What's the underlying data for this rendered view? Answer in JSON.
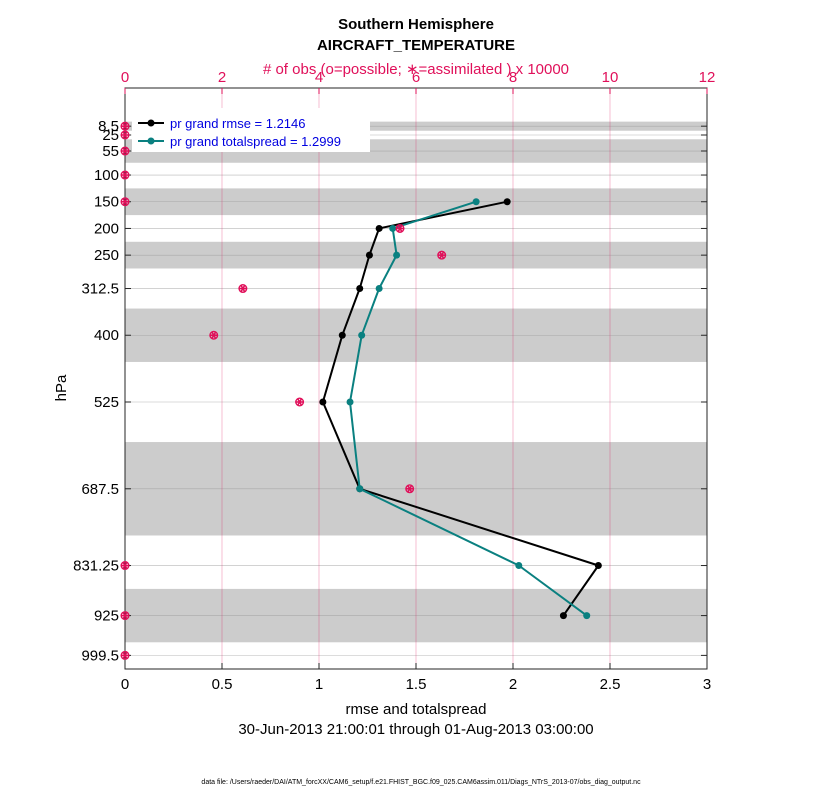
{
  "chart_data": {
    "type": "line",
    "title": "Southern Hemisphere",
    "subtitle": "AIRCRAFT_TEMPERATURE",
    "top_axis_label": "# of obs (o=possible; ∗=assimilated ) x 10000",
    "xlabel": "rmse and totalspread",
    "ylabel": "hPa",
    "date_range": "30-Jun-2013 21:00:01 through 01-Aug-2013 03:00:00",
    "footer": "data file: /Users/raeder/DAI/ATM_forcXX/CAM6_setup/f.e21.FHIST_BGC.f09_025.CAM6assim.011/Diags_NTrS_2013-07/obs_diag_output.nc",
    "xlim": [
      0,
      3
    ],
    "x_ticks": [
      0,
      0.5,
      1,
      1.5,
      2,
      2.5,
      3
    ],
    "x_tick_labels": [
      "0",
      "0.5",
      "1",
      "1.5",
      "2",
      "2.5",
      "3"
    ],
    "top_xlim": [
      0,
      12
    ],
    "top_ticks": [
      0,
      2,
      4,
      6,
      8,
      10,
      12
    ],
    "top_tick_labels": [
      "0",
      "2",
      "4",
      "6",
      "8",
      "10",
      "12"
    ],
    "ylim": [
      1025,
      -63
    ],
    "y_levels": [
      8.5,
      25,
      55,
      100,
      150,
      200,
      250,
      312.5,
      400,
      525,
      687.5,
      831.25,
      925,
      999.5
    ],
    "y_tick_labels": [
      "8.5",
      "25",
      "55",
      "100",
      "150",
      "200",
      "250",
      "312.5",
      "400",
      "525",
      "687.5",
      "831.25",
      "925",
      "999.5"
    ],
    "bands": [
      [
        0,
        17
      ],
      [
        33,
        77
      ],
      [
        125,
        175
      ],
      [
        225,
        275
      ],
      [
        350,
        450
      ],
      [
        600,
        775
      ],
      [
        875,
        975
      ]
    ],
    "series": [
      {
        "name": "pr grand rmse",
        "legend_label": "pr grand rmse = 1.2146",
        "color": "#000000",
        "points": [
          {
            "level": 150,
            "value": 1.97
          },
          {
            "level": 200,
            "value": 1.31
          },
          {
            "level": 250,
            "value": 1.26
          },
          {
            "level": 312.5,
            "value": 1.21
          },
          {
            "level": 400,
            "value": 1.12
          },
          {
            "level": 525,
            "value": 1.02
          },
          {
            "level": 687.5,
            "value": 1.21
          },
          {
            "level": 831.25,
            "value": 2.44
          },
          {
            "level": 925,
            "value": 2.26
          }
        ]
      },
      {
        "name": "pr grand totalspread",
        "legend_label": "pr grand totalspread = 1.2999",
        "color": "#0a8080",
        "points": [
          {
            "level": 150,
            "value": 1.81
          },
          {
            "level": 200,
            "value": 1.38
          },
          {
            "level": 250,
            "value": 1.4
          },
          {
            "level": 312.5,
            "value": 1.31
          },
          {
            "level": 400,
            "value": 1.22
          },
          {
            "level": 525,
            "value": 1.16
          },
          {
            "level": 687.5,
            "value": 1.21
          },
          {
            "level": 831.25,
            "value": 2.03
          },
          {
            "level": 925,
            "value": 2.38
          }
        ]
      }
    ],
    "obs_counts": {
      "name": "# of obs",
      "color": "#e0105a",
      "unit": "x 10000",
      "points": [
        {
          "level": 8.5,
          "value": 0.0
        },
        {
          "level": 25,
          "value": 0.0
        },
        {
          "level": 55,
          "value": 0.0
        },
        {
          "level": 100,
          "value": 0.0
        },
        {
          "level": 150,
          "value": 0.0
        },
        {
          "level": 200,
          "value": 5.67
        },
        {
          "level": 250,
          "value": 6.53
        },
        {
          "level": 312.5,
          "value": 2.43
        },
        {
          "level": 400,
          "value": 1.83
        },
        {
          "level": 525,
          "value": 3.6
        },
        {
          "level": 687.5,
          "value": 5.87
        },
        {
          "level": 831.25,
          "value": 0.0
        },
        {
          "level": 925,
          "value": 0.0
        },
        {
          "level": 999.5,
          "value": 0.0
        }
      ]
    }
  }
}
